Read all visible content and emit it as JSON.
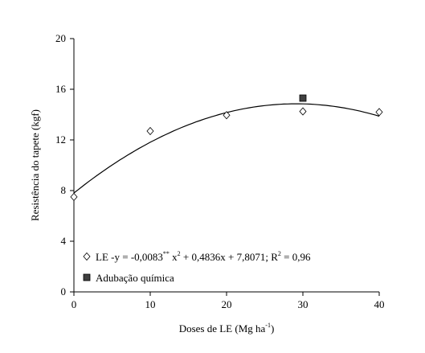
{
  "chart_data": {
    "type": "scatter",
    "xlabel": {
      "text": "Doses de LE (Mg ha",
      "sup": "-1",
      "end": ")"
    },
    "ylabel": "Resistência do tapete  (kgf)",
    "xlim": [
      0,
      40
    ],
    "xticks": [
      0,
      10,
      20,
      30,
      40
    ],
    "ylim": [
      0,
      20
    ],
    "yticks": [
      0,
      4,
      8,
      12,
      16,
      20
    ],
    "grid": false,
    "legend": "lower left",
    "series": [
      {
        "name": "LE -",
        "marker": "diamond",
        "color": "#ffffff",
        "x": [
          0,
          10,
          20,
          30,
          40
        ],
        "values": [
          7.5,
          12.7,
          13.95,
          14.25,
          14.2
        ]
      },
      {
        "name": "Adubação química",
        "marker": "square",
        "color": "#404040",
        "x": [
          30
        ],
        "values": [
          15.3
        ]
      }
    ],
    "fit": {
      "series": 0,
      "terms": [
        {
          "text": "y = "
        },
        {
          "value": -0.0083,
          "label": "-0,0083"
        },
        {
          "text": "**",
          "sup": true
        },
        {
          "text": " x"
        },
        {
          "text": "2",
          "sup": true
        },
        {
          "text": " + "
        },
        {
          "value": 0.4836,
          "label": "0,4836"
        },
        {
          "text": "x + "
        },
        {
          "value": 7.8071,
          "label": "7,8071"
        },
        {
          "text": "; R"
        },
        {
          "text": "2",
          "sup": true
        },
        {
          "text": " = "
        },
        {
          "value": 0.96,
          "label": "0,96"
        }
      ]
    }
  }
}
